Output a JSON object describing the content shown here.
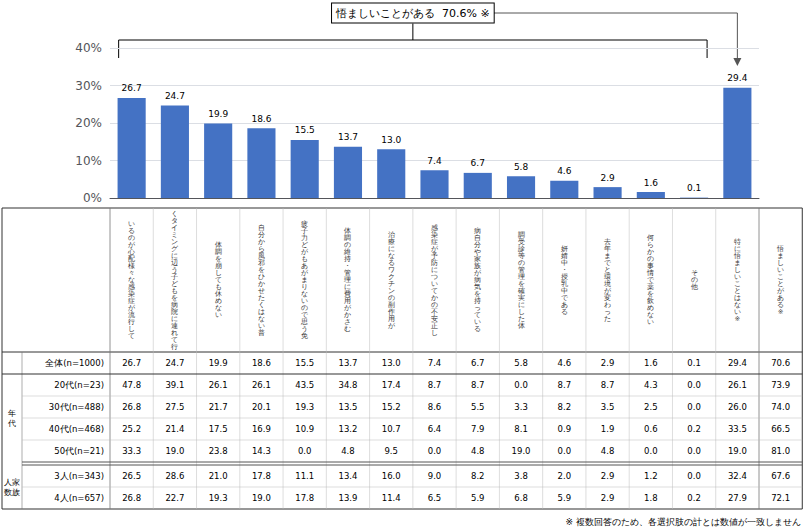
{
  "chart_data": {
    "type": "bar",
    "categories": [
      null,
      null,
      null,
      null,
      null,
      null,
      null,
      null,
      null,
      null,
      null,
      null,
      null,
      null,
      null
    ],
    "values": [
      26.7,
      24.7,
      19.9,
      18.6,
      15.5,
      13.7,
      13.0,
      7.4,
      6.7,
      5.8,
      4.6,
      2.9,
      1.6,
      0.1,
      29.4
    ],
    "value_labels": [
      "26.7",
      "24.7",
      "19.9",
      "18.6",
      "15.5",
      "13.7",
      "13.0",
      "7.4",
      "6.7",
      "5.8",
      "4.6",
      "2.9",
      "1.6",
      "0.1",
      "29.4"
    ],
    "color": "#4472C4",
    "data_labels": true,
    "ylim": [
      0,
      40
    ],
    "yticks": [
      {
        "value": 0,
        "label": "0%"
      },
      {
        "value": 10,
        "label": "10%"
      },
      {
        "value": 20,
        "label": "20%"
      },
      {
        "value": 30,
        "label": "30%"
      },
      {
        "value": 40,
        "label": "40%"
      }
    ],
    "grid": true,
    "annotation": "悟ましいことがある  70.6% ※",
    "table": {
      "columns": [
        "いるのが心配様々な感染症が流行して",
        "くタイミングに辺う子どもを病院に連れて行",
        "体調を崩しても休めない",
        "自分から風邪をひかせたくはない普",
        "疲子力どがもあがまりないので思う免",
        "体調の維持・管理に費用がかさむ",
        "治療になるワクチンの副作用が",
        "感染症が予防についてかの不安正し",
        "病自分や家族が病気を持っている",
        "調受診等の管理を確実にした体",
        "妍婧中・授乳中である",
        "去年までと環境が変わった",
        "何らかの事情で薬を飲めない",
        "その他",
        "特に悟ましいことはない※",
        "悟ましいことがある※"
      ],
      "rows": [
        {
          "label": "全体(n=1000)",
          "values": [
            26.7,
            24.7,
            19.9,
            18.6,
            15.5,
            13.7,
            13.0,
            7.4,
            6.7,
            5.8,
            4.6,
            2.9,
            1.6,
            0.1,
            29.4,
            70.6
          ],
          "value_labels": [
            "26.7",
            "24.7",
            "19.9",
            "18.6",
            "15.5",
            "13.7",
            "13.0",
            "7.4",
            "6.7",
            "5.8",
            "4.6",
            "2.9",
            "1.6",
            "0.1",
            "29.4",
            "70.6"
          ]
        },
        {
          "label": "20代(n=23)",
          "group": "年\n代",
          "values": [
            47.8,
            39.1,
            26.1,
            26.1,
            43.5,
            34.8,
            17.4,
            8.7,
            8.7,
            0.0,
            8.7,
            8.7,
            4.3,
            0.0,
            26.1,
            73.9
          ],
          "value_labels": [
            "47.8",
            "39.1",
            "26.1",
            "26.1",
            "43.5",
            "34.8",
            "17.4",
            "8.7",
            "8.7",
            "0.0",
            "8.7",
            "8.7",
            "4.3",
            "0.0",
            "26.1",
            "73.9"
          ]
        },
        {
          "label": "30代(n=488)",
          "group": "年\n代",
          "values": [
            26.8,
            27.5,
            21.7,
            20.1,
            19.3,
            13.5,
            15.2,
            8.6,
            5.5,
            3.3,
            8.2,
            3.5,
            2.5,
            0.0,
            26.0,
            74.0
          ],
          "value_labels": [
            "26.8",
            "27.5",
            "21.7",
            "20.1",
            "19.3",
            "13.5",
            "15.2",
            "8.6",
            "5.5",
            "3.3",
            "8.2",
            "3.5",
            "2.5",
            "0.0",
            "26.0",
            "74.0"
          ]
        },
        {
          "label": "40代(n=468)",
          "group": "年\n代",
          "values": [
            25.2,
            21.4,
            17.5,
            16.9,
            10.9,
            13.2,
            10.7,
            6.4,
            7.9,
            8.1,
            0.9,
            1.9,
            0.6,
            0.2,
            33.5,
            66.5
          ],
          "value_labels": [
            "25.2",
            "21.4",
            "17.5",
            "16.9",
            "10.9",
            "13.2",
            "10.7",
            "6.4",
            "7.9",
            "8.1",
            "0.9",
            "1.9",
            "0.6",
            "0.2",
            "33.5",
            "66.5"
          ]
        },
        {
          "label": "50代(n=21)",
          "group": "年\n代",
          "values": [
            33.3,
            19.0,
            23.8,
            14.3,
            0.0,
            4.8,
            9.5,
            0.0,
            4.8,
            19.0,
            0.0,
            4.8,
            0.0,
            0.0,
            19.0,
            81.0
          ],
          "value_labels": [
            "33.3",
            "19.0",
            "23.8",
            "14.3",
            "0.0",
            "4.8",
            "9.5",
            "0.0",
            "4.8",
            "19.0",
            "0.0",
            "4.8",
            "0.0",
            "0.0",
            "19.0",
            "81.0"
          ]
        },
        {
          "label": "3人(n=343)",
          "group": "人家\n数族",
          "values": [
            26.5,
            28.6,
            21.0,
            17.8,
            11.1,
            13.4,
            16.0,
            9.0,
            8.2,
            3.8,
            2.0,
            2.9,
            1.2,
            0.0,
            32.4,
            67.6
          ],
          "value_labels": [
            "26.5",
            "28.6",
            "21.0",
            "17.8",
            "11.1",
            "13.4",
            "16.0",
            "9.0",
            "8.2",
            "3.8",
            "2.0",
            "2.9",
            "1.2",
            "0.0",
            "32.4",
            "67.6"
          ]
        },
        {
          "label": "4人(n=657)",
          "group": "人家\n数族",
          "values": [
            26.8,
            22.7,
            19.3,
            19.0,
            17.8,
            13.9,
            11.4,
            6.5,
            5.9,
            6.8,
            5.9,
            2.9,
            1.8,
            0.2,
            27.9,
            72.1
          ],
          "value_labels": [
            "26.8",
            "22.7",
            "19.3",
            "19.0",
            "17.8",
            "13.9",
            "11.4",
            "6.5",
            "5.9",
            "6.8",
            "5.9",
            "2.9",
            "1.8",
            "0.2",
            "27.9",
            "72.1"
          ]
        }
      ]
    },
    "footnote": "※ 複数回答のため、各選択肢の計とは数値が一致しません"
  }
}
